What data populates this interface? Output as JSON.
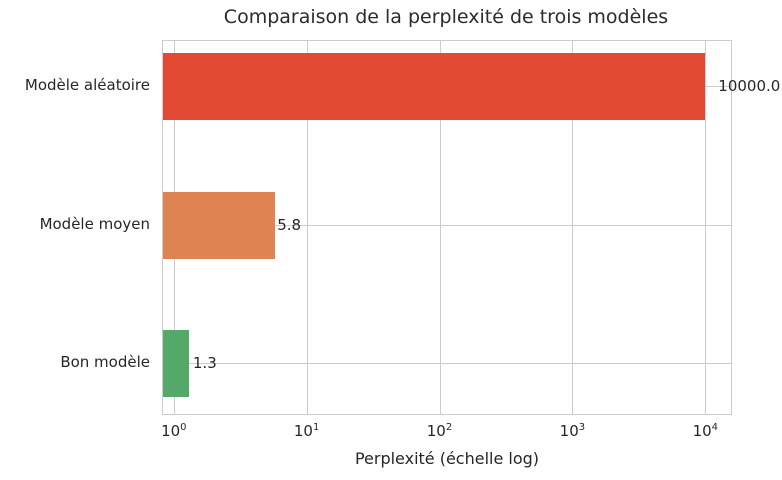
{
  "chart_data": {
    "type": "bar",
    "orientation": "horizontal",
    "title": "Comparaison de la perplexité de trois modèles",
    "xlabel": "Perplexité (échelle log)",
    "ylabel": "",
    "xscale": "log",
    "xlim": [
      0.83,
      15600
    ],
    "grid": true,
    "categories": [
      "Modèle aléatoire",
      "Modèle moyen",
      "Bon modèle"
    ],
    "values": [
      10000.0,
      5.8,
      1.3
    ],
    "value_labels": [
      "10000.0",
      "5.8",
      "1.3"
    ],
    "colors": [
      "#e24a33",
      "#dd8452",
      "#55a868"
    ],
    "xticks": [
      {
        "base": "10",
        "exp": "0",
        "value": 1
      },
      {
        "base": "10",
        "exp": "1",
        "value": 10
      },
      {
        "base": "10",
        "exp": "2",
        "value": 100
      },
      {
        "base": "10",
        "exp": "3",
        "value": 1000
      },
      {
        "base": "10",
        "exp": "4",
        "value": 10000
      }
    ],
    "background": "#ffffff",
    "grid_color": "#cccccc",
    "text_color": "#262626"
  }
}
